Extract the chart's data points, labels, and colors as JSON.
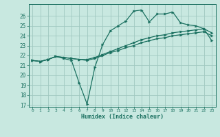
{
  "xlabel": "Humidex (Indice chaleur)",
  "bg_color": "#c8e8e0",
  "grid_color": "#a0c8c0",
  "line_color": "#1a7060",
  "xlim": [
    -0.5,
    23.5
  ],
  "ylim": [
    16.8,
    27.2
  ],
  "yticks": [
    17,
    18,
    19,
    20,
    21,
    22,
    23,
    24,
    25,
    26
  ],
  "xticks": [
    0,
    1,
    2,
    3,
    4,
    5,
    6,
    7,
    8,
    9,
    10,
    11,
    12,
    13,
    14,
    15,
    16,
    17,
    18,
    19,
    20,
    21,
    22,
    23
  ],
  "series1_x": [
    0,
    1,
    2,
    3,
    4,
    5,
    6,
    7,
    8,
    9,
    10,
    11,
    12,
    13,
    14,
    15,
    16,
    17,
    18,
    19,
    20,
    21,
    22,
    23
  ],
  "series1_y": [
    21.5,
    21.4,
    21.6,
    21.9,
    21.7,
    21.5,
    19.2,
    17.1,
    20.8,
    23.1,
    24.5,
    25.0,
    25.5,
    26.5,
    26.6,
    25.4,
    26.2,
    26.2,
    26.4,
    25.3,
    25.1,
    25.0,
    24.7,
    23.5
  ],
  "series2_x": [
    0,
    1,
    2,
    3,
    4,
    5,
    6,
    7,
    8,
    9,
    10,
    11,
    12,
    13,
    14,
    15,
    16,
    17,
    18,
    19,
    20,
    21,
    22,
    23
  ],
  "series2_y": [
    21.5,
    21.4,
    21.6,
    21.9,
    21.8,
    21.7,
    21.6,
    21.5,
    21.7,
    22.0,
    22.3,
    22.5,
    22.8,
    23.0,
    23.3,
    23.5,
    23.7,
    23.8,
    24.0,
    24.1,
    24.2,
    24.3,
    24.4,
    24.0
  ],
  "series3_x": [
    0,
    1,
    2,
    3,
    4,
    5,
    6,
    7,
    8,
    9,
    10,
    11,
    12,
    13,
    14,
    15,
    16,
    17,
    18,
    19,
    20,
    21,
    22,
    23
  ],
  "series3_y": [
    21.5,
    21.4,
    21.6,
    21.9,
    21.8,
    21.7,
    21.6,
    21.6,
    21.8,
    22.1,
    22.4,
    22.7,
    23.0,
    23.3,
    23.6,
    23.8,
    24.0,
    24.1,
    24.3,
    24.4,
    24.5,
    24.6,
    24.7,
    24.3
  ]
}
